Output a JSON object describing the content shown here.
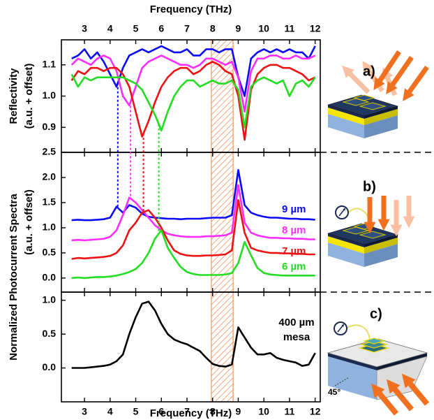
{
  "chart_data": [
    {
      "type": "line",
      "x_label": "Frequency (THz)",
      "y_label": [
        "Reflectivity",
        "(a.u. + offset)"
      ],
      "x": [
        2.5,
        2.75,
        3,
        3.25,
        3.5,
        3.75,
        4,
        4.25,
        4.5,
        4.75,
        5,
        5.25,
        5.5,
        5.75,
        6,
        6.25,
        6.5,
        6.75,
        7,
        7.25,
        7.5,
        7.75,
        8,
        8.25,
        8.5,
        8.75,
        9,
        9.25,
        9.5,
        9.75,
        10,
        10.25,
        10.5,
        10.75,
        11,
        11.25,
        11.5,
        11.75,
        12
      ],
      "series": [
        {
          "color": "#0a0aff",
          "values": [
            1.12,
            1.13,
            1.15,
            1.12,
            1.14,
            1.11,
            1.07,
            1.03,
            1.09,
            1.13,
            1.14,
            1.15,
            1.14,
            1.15,
            1.16,
            1.15,
            1.14,
            1.14,
            1.15,
            1.13,
            1.13,
            1.15,
            1.15,
            1.14,
            1.15,
            1.15,
            1.06,
            1.0,
            1.12,
            1.14,
            1.15,
            1.14,
            1.15,
            1.14,
            1.15,
            1.14,
            1.14,
            1.12,
            1.16
          ]
        },
        {
          "color": "#ff2dff",
          "values": [
            1.1,
            1.12,
            1.11,
            1.1,
            1.12,
            1.13,
            1.12,
            1.08,
            1.0,
            0.97,
            1.03,
            1.09,
            1.11,
            1.12,
            1.13,
            1.12,
            1.11,
            1.1,
            1.1,
            1.09,
            1.1,
            1.12,
            1.12,
            1.11,
            1.1,
            1.11,
            1.06,
            0.95,
            1.08,
            1.12,
            1.12,
            1.13,
            1.13,
            1.12,
            1.12,
            1.13,
            1.12,
            1.12,
            1.13
          ]
        },
        {
          "color": "#ee1111",
          "values": [
            1.05,
            1.08,
            1.07,
            1.09,
            1.09,
            1.08,
            1.09,
            1.09,
            1.07,
            1.03,
            0.95,
            0.87,
            0.92,
            0.98,
            1.03,
            1.06,
            1.08,
            1.09,
            1.09,
            1.07,
            1.08,
            1.1,
            1.11,
            1.1,
            1.08,
            1.07,
            1.0,
            0.86,
            1.02,
            1.07,
            1.09,
            1.1,
            1.1,
            1.09,
            1.09,
            1.08,
            1.07,
            1.05,
            1.06
          ]
        },
        {
          "color": "#22dd22",
          "values": [
            1.07,
            1.03,
            1.06,
            1.05,
            1.06,
            1.06,
            1.06,
            1.06,
            1.06,
            1.05,
            1.04,
            1.02,
            0.98,
            0.94,
            0.89,
            0.95,
            1.0,
            1.03,
            1.05,
            1.05,
            1.03,
            1.04,
            1.05,
            1.04,
            1.04,
            1.05,
            1.02,
            0.9,
            1.03,
            1.05,
            1.06,
            1.05,
            1.04,
            1.05,
            1.0,
            1.04,
            1.05,
            1.03,
            1.06
          ]
        }
      ],
      "xlim": [
        2.1,
        12.2
      ],
      "ylim": [
        0.82,
        1.18
      ],
      "xticks": [
        3,
        4,
        5,
        6,
        7,
        8,
        9,
        10,
        11,
        12
      ],
      "yticks": [
        0.9,
        {
          "value": 1,
          "label": "1.0"
        },
        1.1
      ],
      "shaded_band": [
        7.95,
        8.8
      ],
      "shaded_color": "#f08a4b"
    },
    {
      "type": "line",
      "y_label": [
        "Normalized Photocurrent Spectra",
        "(a.u. + offset)"
      ],
      "x": [
        2.5,
        2.75,
        3,
        3.25,
        3.5,
        3.75,
        4,
        4.25,
        4.5,
        4.75,
        5,
        5.25,
        5.5,
        5.75,
        6,
        6.25,
        6.5,
        6.75,
        7,
        7.25,
        7.5,
        7.75,
        8,
        8.25,
        8.5,
        8.75,
        9,
        9.25,
        9.5,
        9.75,
        10,
        10.25,
        10.5,
        10.75,
        11,
        11.25,
        11.5,
        11.75,
        12
      ],
      "series": [
        {
          "name": "9 µm",
          "color": "#0a0aff",
          "values": [
            1.15,
            1.16,
            1.15,
            1.15,
            1.16,
            1.17,
            1.2,
            1.42,
            1.3,
            1.45,
            1.4,
            1.28,
            1.22,
            1.2,
            1.19,
            1.18,
            1.18,
            1.17,
            1.18,
            1.18,
            1.18,
            1.19,
            1.2,
            1.2,
            1.2,
            1.25,
            2.15,
            1.45,
            1.3,
            1.25,
            1.22,
            1.2,
            1.2,
            1.19,
            1.18,
            1.18,
            1.17,
            1.17,
            1.16
          ]
        },
        {
          "name": "8 µm",
          "color": "#ff2dff",
          "values": [
            0.75,
            0.76,
            0.75,
            0.76,
            0.77,
            0.78,
            0.82,
            0.95,
            1.25,
            1.6,
            1.5,
            1.35,
            1.2,
            1.05,
            0.95,
            0.88,
            0.85,
            0.83,
            0.82,
            0.82,
            0.82,
            0.83,
            0.83,
            0.84,
            0.85,
            0.9,
            1.85,
            1.1,
            0.9,
            0.85,
            0.82,
            0.8,
            0.8,
            0.79,
            0.79,
            0.78,
            0.78,
            0.77,
            0.77
          ]
        },
        {
          "name": "7 µm",
          "color": "#ee1111",
          "values": [
            0.38,
            0.4,
            0.39,
            0.4,
            0.41,
            0.42,
            0.44,
            0.5,
            0.65,
            0.95,
            1.1,
            1.3,
            1.35,
            1.2,
            1.0,
            0.75,
            0.55,
            0.48,
            0.45,
            0.44,
            0.44,
            0.45,
            0.45,
            0.46,
            0.47,
            0.55,
            1.55,
            0.9,
            0.6,
            0.55,
            0.52,
            0.5,
            0.5,
            0.49,
            0.49,
            0.48,
            0.48,
            0.47,
            0.47
          ]
        },
        {
          "name": "6 µm",
          "color": "#22dd22",
          "values": [
            0.0,
            0.01,
            0.0,
            0.01,
            0.02,
            0.02,
            0.03,
            0.05,
            0.08,
            0.12,
            0.18,
            0.3,
            0.5,
            0.78,
            0.95,
            0.6,
            0.4,
            0.22,
            0.12,
            0.08,
            0.06,
            0.06,
            0.06,
            0.06,
            0.07,
            0.1,
            0.3,
            0.72,
            0.45,
            0.2,
            0.1,
            0.07,
            0.06,
            0.05,
            0.05,
            0.05,
            0.05,
            0.05,
            0.05
          ]
        }
      ],
      "xlim": [
        2.1,
        12.2
      ],
      "ylim": [
        -0.28,
        2.5
      ],
      "xticks": [
        3,
        4,
        5,
        6,
        7,
        8,
        9,
        10,
        11,
        12
      ],
      "yticks": [
        {
          "value": 0,
          "label": "0.0"
        },
        0.5,
        {
          "value": 1,
          "label": "1.0"
        },
        1.5,
        {
          "value": 2,
          "label": "2.0"
        },
        2.5
      ],
      "resonance_x": [
        4.3,
        4.8,
        5.3,
        5.9
      ]
    },
    {
      "type": "line",
      "x_label": "Frequency (THz)",
      "x": [
        2.5,
        2.75,
        3,
        3.25,
        3.5,
        3.75,
        4,
        4.25,
        4.5,
        4.75,
        5,
        5.25,
        5.5,
        5.75,
        6,
        6.25,
        6.5,
        6.75,
        7,
        7.25,
        7.5,
        7.75,
        8,
        8.25,
        8.5,
        8.75,
        9,
        9.25,
        9.5,
        9.75,
        10,
        10.25,
        10.5,
        10.75,
        11,
        11.25,
        11.5,
        11.75,
        12
      ],
      "series": [
        {
          "color": "#000000",
          "values": [
            0,
            0,
            0,
            0.01,
            0.02,
            0.03,
            0.05,
            0.1,
            0.2,
            0.5,
            0.75,
            0.95,
            0.98,
            0.85,
            0.65,
            0.5,
            0.42,
            0.38,
            0.35,
            0.3,
            0.25,
            0.15,
            0.06,
            0.03,
            0.02,
            0.05,
            0.6,
            0.45,
            0.3,
            0.2,
            0.2,
            0.22,
            0.15,
            0.12,
            0.1,
            0.08,
            0.03,
            0.05,
            0.22
          ]
        }
      ],
      "xlim": [
        2.1,
        12.2
      ],
      "ylim": [
        -0.5,
        1.12
      ],
      "xticks": [
        3,
        4,
        5,
        6,
        7,
        8,
        9,
        10,
        11,
        12
      ],
      "yticks": [
        {
          "value": 0,
          "label": "0.0"
        },
        0.5,
        {
          "value": 1,
          "label": "1.0"
        }
      ],
      "annotation": [
        "400 µm",
        "mesa"
      ]
    }
  ],
  "diagram": {
    "labels": [
      "a)",
      "b)",
      "c)"
    ],
    "angle": "45°"
  }
}
